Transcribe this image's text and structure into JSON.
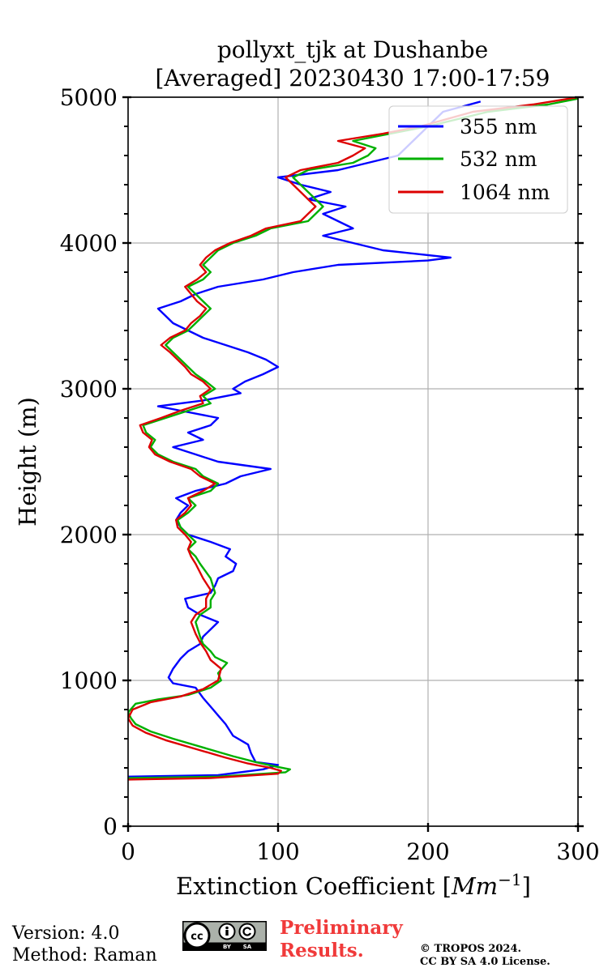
{
  "chart_data": {
    "type": "line",
    "title_line1": "pollyxt_tjk at Dushanbe",
    "title_line2": "[Averaged] 20230430 17:00-17:59",
    "xlabel_prefix": "Extinction Coefficient [",
    "xlabel_unit": "Mm",
    "xlabel_exp": "−1",
    "xlabel_suffix": "]",
    "ylabel": "Height (m)",
    "xlim": [
      0,
      300
    ],
    "ylim": [
      0,
      5000
    ],
    "xticks": [
      0,
      100,
      200,
      300
    ],
    "yticks": [
      0,
      1000,
      2000,
      3000,
      4000,
      5000
    ],
    "grid": true,
    "legend_position": "top-right",
    "series": [
      {
        "name": "355 nm",
        "color": "#0000ff",
        "points": [
          [
            0,
            340
          ],
          [
            60,
            350
          ],
          [
            90,
            390
          ],
          [
            100,
            420
          ],
          [
            85,
            440
          ],
          [
            82,
            500
          ],
          [
            80,
            560
          ],
          [
            70,
            620
          ],
          [
            65,
            700
          ],
          [
            60,
            760
          ],
          [
            55,
            820
          ],
          [
            50,
            880
          ],
          [
            45,
            950
          ],
          [
            30,
            980
          ],
          [
            27,
            1020
          ],
          [
            30,
            1080
          ],
          [
            35,
            1150
          ],
          [
            40,
            1200
          ],
          [
            48,
            1250
          ],
          [
            50,
            1300
          ],
          [
            55,
            1350
          ],
          [
            60,
            1400
          ],
          [
            48,
            1450
          ],
          [
            40,
            1500
          ],
          [
            38,
            1560
          ],
          [
            55,
            1600
          ],
          [
            58,
            1650
          ],
          [
            60,
            1700
          ],
          [
            70,
            1750
          ],
          [
            72,
            1800
          ],
          [
            65,
            1850
          ],
          [
            68,
            1900
          ],
          [
            55,
            1950
          ],
          [
            40,
            2000
          ],
          [
            35,
            2050
          ],
          [
            32,
            2100
          ],
          [
            35,
            2150
          ],
          [
            40,
            2200
          ],
          [
            32,
            2250
          ],
          [
            45,
            2300
          ],
          [
            65,
            2350
          ],
          [
            75,
            2400
          ],
          [
            95,
            2450
          ],
          [
            60,
            2500
          ],
          [
            45,
            2550
          ],
          [
            30,
            2600
          ],
          [
            50,
            2650
          ],
          [
            40,
            2700
          ],
          [
            55,
            2750
          ],
          [
            60,
            2800
          ],
          [
            35,
            2850
          ],
          [
            20,
            2880
          ],
          [
            50,
            2920
          ],
          [
            75,
            2970
          ],
          [
            70,
            3000
          ],
          [
            78,
            3050
          ],
          [
            90,
            3100
          ],
          [
            100,
            3150
          ],
          [
            92,
            3200
          ],
          [
            80,
            3250
          ],
          [
            65,
            3300
          ],
          [
            50,
            3350
          ],
          [
            40,
            3400
          ],
          [
            30,
            3450
          ],
          [
            25,
            3500
          ],
          [
            20,
            3550
          ],
          [
            35,
            3600
          ],
          [
            45,
            3650
          ],
          [
            60,
            3700
          ],
          [
            90,
            3750
          ],
          [
            110,
            3800
          ],
          [
            140,
            3850
          ],
          [
            200,
            3880
          ],
          [
            215,
            3900
          ],
          [
            170,
            3950
          ],
          [
            150,
            4000
          ],
          [
            130,
            4050
          ],
          [
            150,
            4100
          ],
          [
            140,
            4150
          ],
          [
            130,
            4200
          ],
          [
            145,
            4250
          ],
          [
            120,
            4300
          ],
          [
            135,
            4350
          ],
          [
            115,
            4400
          ],
          [
            100,
            4450
          ],
          [
            140,
            4500
          ],
          [
            160,
            4550
          ],
          [
            180,
            4600
          ],
          [
            190,
            4700
          ],
          [
            200,
            4800
          ],
          [
            210,
            4900
          ],
          [
            235,
            4970
          ]
        ]
      },
      {
        "name": "532 nm",
        "color": "#00b000",
        "points": [
          [
            0,
            330
          ],
          [
            60,
            340
          ],
          [
            105,
            370
          ],
          [
            108,
            390
          ],
          [
            98,
            410
          ],
          [
            85,
            440
          ],
          [
            70,
            480
          ],
          [
            50,
            540
          ],
          [
            30,
            600
          ],
          [
            15,
            650
          ],
          [
            5,
            700
          ],
          [
            2,
            740
          ],
          [
            0,
            780
          ],
          [
            5,
            840
          ],
          [
            20,
            870
          ],
          [
            40,
            900
          ],
          [
            55,
            950
          ],
          [
            62,
            1000
          ],
          [
            60,
            1050
          ],
          [
            66,
            1120
          ],
          [
            58,
            1160
          ],
          [
            55,
            1200
          ],
          [
            50,
            1250
          ],
          [
            48,
            1300
          ],
          [
            45,
            1400
          ],
          [
            48,
            1450
          ],
          [
            55,
            1500
          ],
          [
            55,
            1550
          ],
          [
            58,
            1600
          ],
          [
            55,
            1700
          ],
          [
            48,
            1800
          ],
          [
            45,
            1850
          ],
          [
            40,
            1900
          ],
          [
            45,
            1950
          ],
          [
            40,
            2000
          ],
          [
            35,
            2050
          ],
          [
            33,
            2100
          ],
          [
            40,
            2150
          ],
          [
            45,
            2200
          ],
          [
            40,
            2250
          ],
          [
            55,
            2300
          ],
          [
            60,
            2350
          ],
          [
            50,
            2400
          ],
          [
            45,
            2450
          ],
          [
            30,
            2500
          ],
          [
            20,
            2550
          ],
          [
            15,
            2600
          ],
          [
            18,
            2650
          ],
          [
            12,
            2700
          ],
          [
            10,
            2750
          ],
          [
            25,
            2800
          ],
          [
            40,
            2850
          ],
          [
            55,
            2900
          ],
          [
            50,
            2950
          ],
          [
            58,
            3000
          ],
          [
            52,
            3050
          ],
          [
            45,
            3100
          ],
          [
            40,
            3150
          ],
          [
            35,
            3200
          ],
          [
            30,
            3250
          ],
          [
            25,
            3300
          ],
          [
            30,
            3350
          ],
          [
            40,
            3400
          ],
          [
            45,
            3450
          ],
          [
            50,
            3500
          ],
          [
            55,
            3550
          ],
          [
            50,
            3600
          ],
          [
            45,
            3650
          ],
          [
            40,
            3700
          ],
          [
            50,
            3750
          ],
          [
            55,
            3800
          ],
          [
            50,
            3850
          ],
          [
            55,
            3900
          ],
          [
            60,
            3950
          ],
          [
            70,
            4000
          ],
          [
            85,
            4050
          ],
          [
            95,
            4100
          ],
          [
            120,
            4150
          ],
          [
            130,
            4250
          ],
          [
            120,
            4350
          ],
          [
            110,
            4450
          ],
          [
            120,
            4500
          ],
          [
            150,
            4550
          ],
          [
            160,
            4600
          ],
          [
            165,
            4650
          ],
          [
            150,
            4700
          ],
          [
            175,
            4750
          ],
          [
            200,
            4800
          ],
          [
            240,
            4900
          ],
          [
            280,
            4950
          ],
          [
            300,
            4990
          ]
        ]
      },
      {
        "name": "1064 nm",
        "color": "#dd0000",
        "points": [
          [
            0,
            320
          ],
          [
            55,
            330
          ],
          [
            100,
            360
          ],
          [
            102,
            380
          ],
          [
            95,
            400
          ],
          [
            80,
            430
          ],
          [
            65,
            470
          ],
          [
            45,
            530
          ],
          [
            25,
            590
          ],
          [
            12,
            640
          ],
          [
            3,
            690
          ],
          [
            0,
            740
          ],
          [
            3,
            800
          ],
          [
            15,
            850
          ],
          [
            35,
            890
          ],
          [
            50,
            940
          ],
          [
            60,
            1000
          ],
          [
            62,
            1080
          ],
          [
            55,
            1140
          ],
          [
            52,
            1200
          ],
          [
            48,
            1260
          ],
          [
            45,
            1320
          ],
          [
            42,
            1400
          ],
          [
            45,
            1450
          ],
          [
            52,
            1500
          ],
          [
            52,
            1560
          ],
          [
            55,
            1620
          ],
          [
            50,
            1700
          ],
          [
            45,
            1800
          ],
          [
            42,
            1850
          ],
          [
            40,
            1900
          ],
          [
            42,
            1950
          ],
          [
            38,
            2000
          ],
          [
            33,
            2050
          ],
          [
            32,
            2100
          ],
          [
            38,
            2150
          ],
          [
            42,
            2200
          ],
          [
            40,
            2250
          ],
          [
            50,
            2300
          ],
          [
            58,
            2350
          ],
          [
            48,
            2400
          ],
          [
            42,
            2450
          ],
          [
            28,
            2500
          ],
          [
            18,
            2550
          ],
          [
            14,
            2600
          ],
          [
            16,
            2650
          ],
          [
            10,
            2700
          ],
          [
            8,
            2750
          ],
          [
            22,
            2800
          ],
          [
            35,
            2850
          ],
          [
            50,
            2900
          ],
          [
            48,
            2950
          ],
          [
            55,
            3000
          ],
          [
            50,
            3050
          ],
          [
            42,
            3100
          ],
          [
            38,
            3150
          ],
          [
            33,
            3200
          ],
          [
            28,
            3250
          ],
          [
            22,
            3300
          ],
          [
            28,
            3350
          ],
          [
            38,
            3400
          ],
          [
            42,
            3450
          ],
          [
            48,
            3500
          ],
          [
            52,
            3550
          ],
          [
            46,
            3600
          ],
          [
            42,
            3650
          ],
          [
            38,
            3700
          ],
          [
            46,
            3750
          ],
          [
            52,
            3800
          ],
          [
            48,
            3850
          ],
          [
            52,
            3900
          ],
          [
            58,
            3950
          ],
          [
            68,
            4000
          ],
          [
            82,
            4050
          ],
          [
            92,
            4100
          ],
          [
            115,
            4150
          ],
          [
            125,
            4250
          ],
          [
            115,
            4350
          ],
          [
            105,
            4450
          ],
          [
            115,
            4500
          ],
          [
            140,
            4550
          ],
          [
            150,
            4600
          ],
          [
            158,
            4650
          ],
          [
            140,
            4700
          ],
          [
            170,
            4750
          ],
          [
            195,
            4800
          ],
          [
            230,
            4900
          ],
          [
            270,
            4950
          ],
          [
            300,
            5000
          ]
        ]
      }
    ]
  },
  "footer": {
    "version": "Version: 4.0",
    "method": "Method: Raman",
    "preliminary_line1": "Preliminary",
    "preliminary_line2": "Results.",
    "copyright_line1": "© TROPOS 2024.",
    "copyright_line2": "CC BY SA 4.0 License.",
    "license_badge": "cc by sa",
    "license_label_by": "BY",
    "license_label_sa": "SA"
  }
}
